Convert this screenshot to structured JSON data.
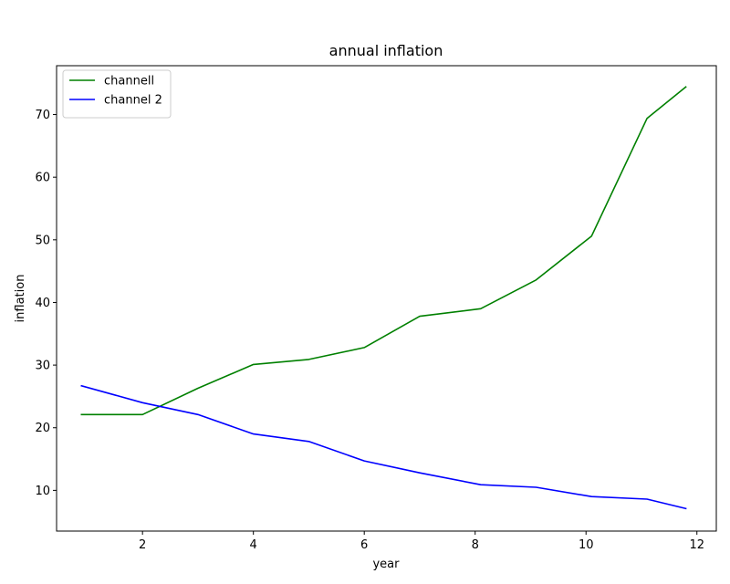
{
  "chart_data": {
    "type": "line",
    "title": "annual inflation",
    "xlabel": "year",
    "ylabel": "inflation",
    "xlim": [
      0.45,
      12.35
    ],
    "ylim": [
      3.5,
      77.8
    ],
    "xticks": [
      2,
      4,
      6,
      8,
      10,
      12
    ],
    "yticks": [
      10,
      20,
      30,
      40,
      50,
      60,
      70
    ],
    "grid": false,
    "legend_position": "upper-left",
    "series": [
      {
        "name": "channell",
        "color": "#008000",
        "x": [
          0.9,
          2.0,
          3.0,
          4.0,
          5.0,
          6.0,
          7.0,
          8.1,
          9.1,
          10.1,
          11.1,
          11.8
        ],
        "y": [
          22.1,
          22.1,
          26.3,
          30.1,
          30.9,
          32.8,
          37.8,
          39.0,
          43.6,
          50.6,
          69.4,
          74.4
        ]
      },
      {
        "name": "channel 2",
        "color": "#0000ff",
        "x": [
          0.9,
          2.0,
          3.0,
          4.0,
          5.0,
          6.0,
          7.0,
          8.1,
          9.1,
          10.1,
          11.1,
          11.8
        ],
        "y": [
          26.7,
          24.0,
          22.1,
          19.0,
          17.8,
          14.7,
          12.8,
          10.9,
          10.5,
          9.0,
          8.6,
          7.1
        ]
      }
    ]
  }
}
